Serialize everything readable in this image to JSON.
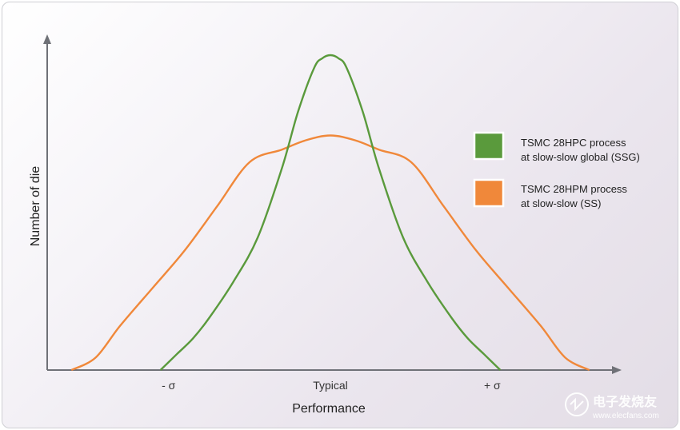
{
  "chart_data": {
    "type": "line",
    "title": "",
    "xlabel": "Performance",
    "ylabel": "Number of die",
    "x_ticks": [
      {
        "x": -1,
        "label": "- σ"
      },
      {
        "x": 0,
        "label": "Typical"
      },
      {
        "x": 1,
        "label": "+ σ"
      }
    ],
    "xlim": [
      -1.75,
      1.75
    ],
    "ylim": [
      0,
      1.0
    ],
    "grid": false,
    "legend_position": "right",
    "series": [
      {
        "name": "TSMC 28HPC process at slow-slow global (SSG)",
        "legend_lines": [
          "TSMC 28HPC process",
          "at slow-slow global (SSG)"
        ],
        "color": "#5a9a3c",
        "x": [
          -1.05,
          -0.95,
          -0.85,
          -0.75,
          -0.6,
          -0.45,
          -0.3,
          -0.2,
          -0.1,
          -0.05,
          0.0,
          0.05,
          0.1,
          0.2,
          0.3,
          0.45,
          0.6,
          0.75,
          0.85,
          0.95,
          1.05
        ],
        "y": [
          0.0,
          0.05,
          0.1,
          0.165,
          0.28,
          0.42,
          0.64,
          0.82,
          0.96,
          0.99,
          1.0,
          0.99,
          0.96,
          0.82,
          0.64,
          0.42,
          0.28,
          0.165,
          0.1,
          0.05,
          0.0
        ]
      },
      {
        "name": "TSMC 28HPM process at slow-slow (SS)",
        "legend_lines": [
          "TSMC 28HPM process",
          "at slow-slow (SS)"
        ],
        "color": "#f0883a",
        "x": [
          -1.6,
          -1.45,
          -1.3,
          -1.1,
          -0.9,
          -0.7,
          -0.5,
          -0.3,
          -0.15,
          0.0,
          0.15,
          0.3,
          0.5,
          0.7,
          0.9,
          1.1,
          1.3,
          1.45,
          1.6
        ],
        "y": [
          0.0,
          0.04,
          0.14,
          0.26,
          0.38,
          0.52,
          0.66,
          0.7,
          0.73,
          0.745,
          0.73,
          0.7,
          0.66,
          0.52,
          0.38,
          0.26,
          0.14,
          0.04,
          0.0
        ]
      }
    ]
  },
  "watermark": {
    "text": "电子发烧友",
    "sub": "www.elecfans.com"
  }
}
